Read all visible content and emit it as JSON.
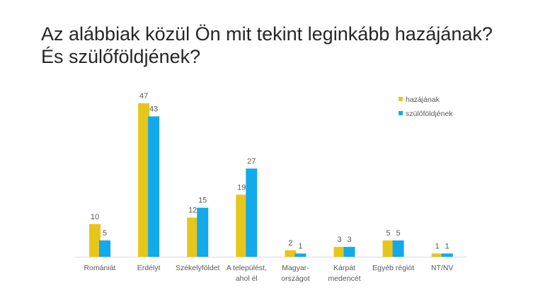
{
  "title": {
    "line1": "Az alábbiak közül Ön mit tekint leginkább hazájának?",
    "line2": "És szülőföldjének?"
  },
  "colors": {
    "series1": "#e8c619",
    "series2": "#12aaeb",
    "axis": "#d9d9d9",
    "text": "#595959"
  },
  "chart_data": {
    "type": "bar",
    "categories": [
      [
        "Romániát"
      ],
      [
        "Erdélyt"
      ],
      [
        "Székelyföldet"
      ],
      [
        "A települést,",
        "ahol él"
      ],
      [
        "Magyar-",
        "országot"
      ],
      [
        "Kárpát",
        "medencét"
      ],
      [
        "Egyéb régiót"
      ],
      [
        "NT/NV"
      ]
    ],
    "series": [
      {
        "name": "hazájának",
        "values": [
          10,
          47,
          12,
          19,
          2,
          3,
          5,
          1
        ]
      },
      {
        "name": "szülőföldjének",
        "values": [
          5,
          43,
          15,
          27,
          1,
          3,
          5,
          1
        ]
      }
    ],
    "ylim": [
      0,
      47
    ],
    "grid": false,
    "legend": "top-right",
    "data_labels": true
  }
}
